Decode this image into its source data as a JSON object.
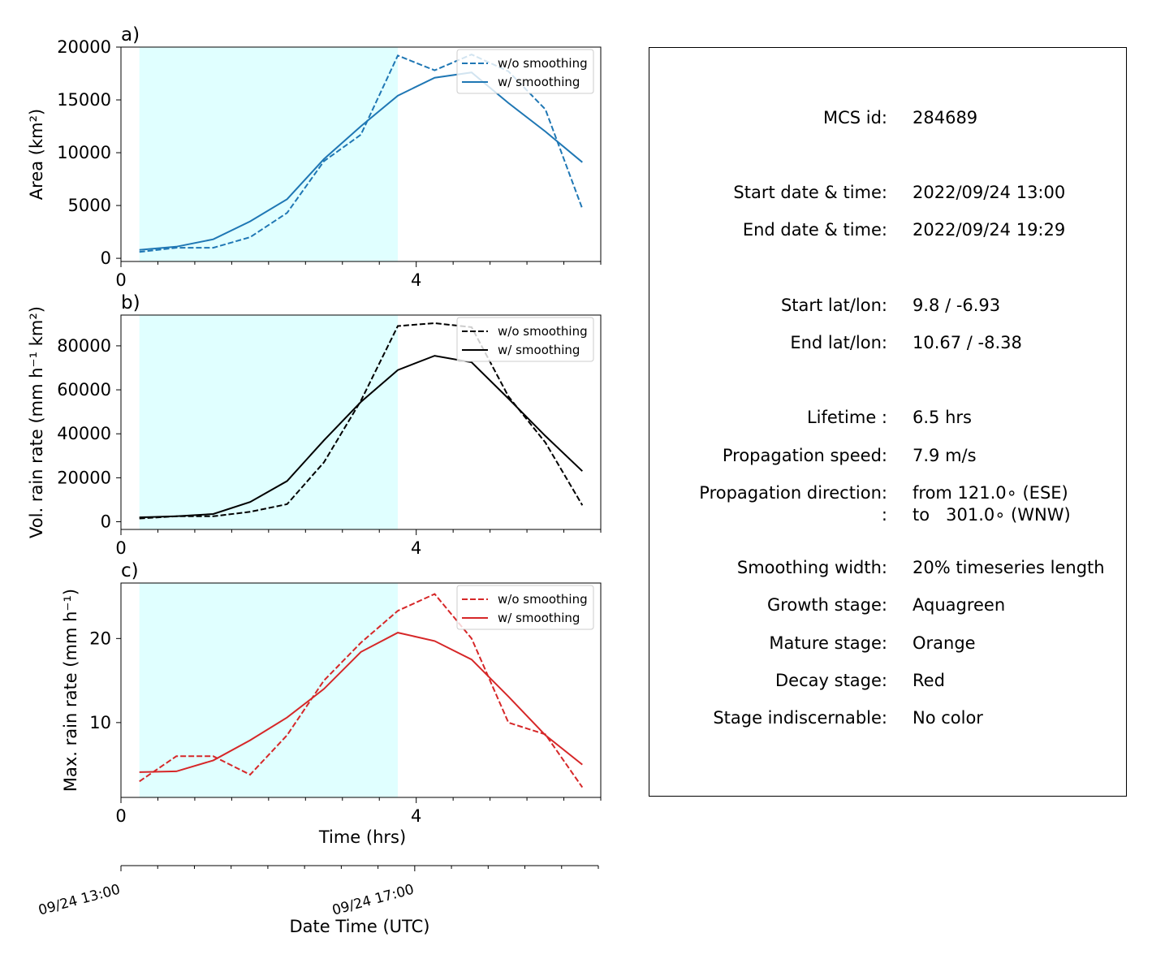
{
  "chart_data": [
    {
      "type": "line",
      "panel_label": "a)",
      "ylabel": "Area  (km²)",
      "xlabel": "",
      "x": [
        0.25,
        0.75,
        1.25,
        1.75,
        2.25,
        2.75,
        3.25,
        3.75,
        4.25,
        4.75,
        5.25,
        5.75,
        6.25
      ],
      "xlim": [
        0,
        6.5
      ],
      "ylim": [
        -300,
        20000
      ],
      "yticks": [
        "0",
        "5000",
        "10000",
        "15000",
        "20000"
      ],
      "xticks": [
        "0",
        "4"
      ],
      "shaded_stage": {
        "stage": "Growth",
        "color": "#e0ffff",
        "x_range": [
          0.25,
          3.75
        ]
      },
      "series": [
        {
          "name": "w/o smoothing",
          "style": "dashed",
          "color": "#1f77b4",
          "values": [
            600,
            1000,
            1000,
            2000,
            4300,
            9200,
            11700,
            19200,
            17800,
            19300,
            17700,
            14100,
            4700
          ]
        },
        {
          "name": "w/ smoothing",
          "style": "solid",
          "color": "#1f77b4",
          "values": [
            800,
            1100,
            1800,
            3500,
            5600,
            9400,
            12500,
            15400,
            17100,
            17600,
            14700,
            12000,
            9100
          ]
        }
      ]
    },
    {
      "type": "line",
      "panel_label": "b)",
      "ylabel": "Vol. rain rate (mm h⁻¹ km²)",
      "xlabel": "",
      "x": [
        0.25,
        0.75,
        1.25,
        1.75,
        2.25,
        2.75,
        3.25,
        3.75,
        4.25,
        4.75,
        5.25,
        5.75,
        6.25
      ],
      "xlim": [
        0,
        6.5
      ],
      "ylim": [
        -3500,
        94000
      ],
      "yticks": [
        "0",
        "20000",
        "40000",
        "60000",
        "80000"
      ],
      "xticks": [
        "0",
        "4"
      ],
      "shaded_stage": {
        "stage": "Growth",
        "color": "#e0ffff",
        "x_range": [
          0.25,
          3.75
        ]
      },
      "series": [
        {
          "name": "w/o smoothing",
          "style": "dashed",
          "color": "#000000",
          "values": [
            1500,
            2500,
            2500,
            4500,
            8000,
            27000,
            55000,
            89000,
            90300,
            88500,
            57000,
            36000,
            7500
          ]
        },
        {
          "name": "w/ smoothing",
          "style": "solid",
          "color": "#000000",
          "values": [
            2000,
            2500,
            3500,
            9000,
            18500,
            37000,
            54500,
            69000,
            75500,
            72500,
            56000,
            39000,
            23000
          ]
        }
      ]
    },
    {
      "type": "line",
      "panel_label": "c)",
      "ylabel": "Max. rain rate  (mm h⁻¹)",
      "xlabel": "Time (hrs)",
      "x": [
        0.25,
        0.75,
        1.25,
        1.75,
        2.25,
        2.75,
        3.25,
        3.75,
        4.25,
        4.75,
        5.25,
        5.75,
        6.25
      ],
      "xlim": [
        0,
        6.5
      ],
      "ylim": [
        1.1,
        26.6
      ],
      "yticks": [
        "10",
        "20"
      ],
      "xticks": [
        "0",
        "4"
      ],
      "shaded_stage": {
        "stage": "Growth",
        "color": "#e0ffff",
        "x_range": [
          0.25,
          3.75
        ]
      },
      "series": [
        {
          "name": "w/o smoothing",
          "style": "dashed",
          "color": "#d62728",
          "values": [
            3.0,
            6.0,
            6.0,
            3.8,
            8.5,
            15.0,
            19.5,
            23.3,
            25.3,
            20.0,
            10.0,
            8.6,
            2.3
          ]
        },
        {
          "name": "w/ smoothing",
          "style": "solid",
          "color": "#d62728",
          "values": [
            4.1,
            4.2,
            5.5,
            7.9,
            10.6,
            14.0,
            18.4,
            20.7,
            19.7,
            17.5,
            13.1,
            8.5,
            5.0
          ]
        }
      ]
    },
    {
      "type": "axis",
      "xlabel": "Date Time (UTC)",
      "xticklabels": [
        {
          "x": 0,
          "label": "09/24 13:00"
        },
        {
          "x": 4,
          "label": "09/24 17:00"
        }
      ],
      "xlim": [
        0,
        6.5
      ]
    }
  ],
  "info": {
    "rows": [
      {
        "key": "MCS id:",
        "value": "284689"
      },
      {
        "key": "Start date & time:",
        "value": "2022/09/24 13:00"
      },
      {
        "key": "End date & time:",
        "value": "2022/09/24 19:29"
      },
      {
        "key": "Start lat/lon:",
        "value": "9.8 / -6.93"
      },
      {
        "key": "End lat/lon:",
        "value": "10.67 / -8.38"
      },
      {
        "key": "Lifetime :",
        "value": "6.5 hrs"
      },
      {
        "key": "Propagation speed:",
        "value": "7.9 m/s"
      },
      {
        "key": "Propagation direction:",
        "value": "from 121.0∘ (ESE)"
      },
      {
        "key": ":",
        "value": "to   301.0∘ (WNW)"
      },
      {
        "key": "Smoothing width:",
        "value": "20% timeseries length"
      },
      {
        "key": "Growth stage:",
        "value": "Aquagreen"
      },
      {
        "key": "Mature stage:",
        "value": "Orange"
      },
      {
        "key": "Decay stage:",
        "value": "Red"
      },
      {
        "key": "Stage indiscernable:",
        "value": "No color"
      }
    ]
  }
}
